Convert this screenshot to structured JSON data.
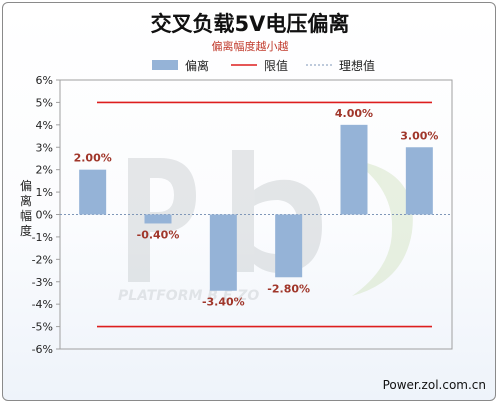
{
  "chart_data": {
    "type": "bar",
    "title": "交叉负载5V电压偏离",
    "subtitle": "偏离幅度越小越",
    "ylabel": "偏离幅度",
    "xlabel": "",
    "categories": [
      "",
      "",
      "",
      "",
      "",
      ""
    ],
    "series": [
      {
        "name": "偏离",
        "values": [
          2.0,
          -0.4,
          -3.4,
          -2.8,
          4.0,
          3.0
        ],
        "color": "#95b3d7"
      }
    ],
    "data_labels": [
      "2.00%",
      "-0.40%",
      "-3.40%",
      "-2.80%",
      "4.00%",
      "3.00%"
    ],
    "reference_lines": [
      {
        "name": "限值",
        "values": [
          5,
          -5
        ],
        "color": "#dd1e1e",
        "style": "solid"
      },
      {
        "name": "理想值",
        "value": 0,
        "color": "#7f97b8",
        "style": "dashed"
      }
    ],
    "ylim": [
      -6,
      6
    ],
    "ytick_step": 1,
    "ytick_labels": [
      "6%",
      "5%",
      "4%",
      "3%",
      "2%",
      "1%",
      "0%",
      "-1%",
      "-2%",
      "-3%",
      "-4%",
      "-5%",
      "-6%"
    ],
    "legend_position": "top-center",
    "grid": false
  },
  "watermark": {
    "text": "PLATFORM B  E ZO",
    "logo": "PC"
  },
  "source": "Power.zol.com.cn"
}
